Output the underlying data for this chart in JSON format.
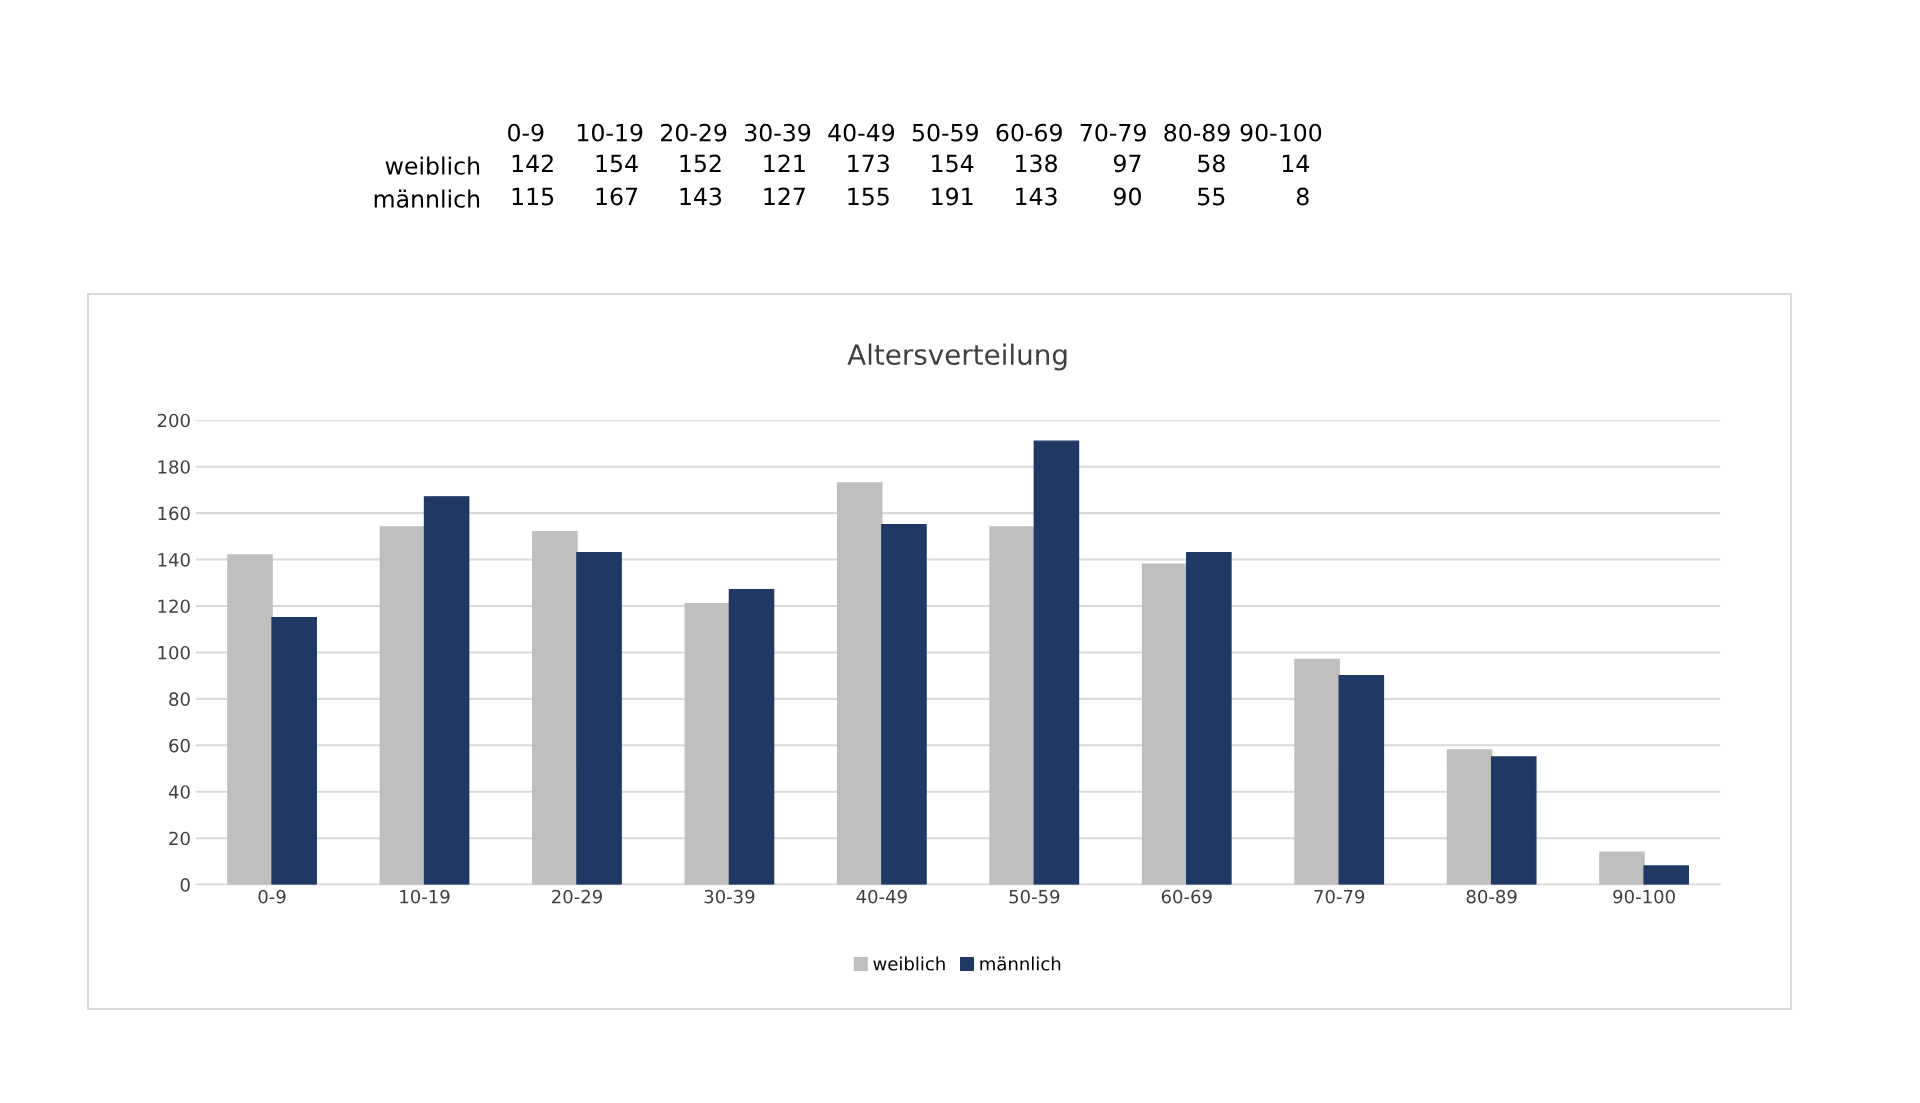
{
  "chart_data": [
    {
      "type": "heatmap",
      "categories": [
        "0-9",
        "10-19",
        "20-29",
        "30-39",
        "40-49",
        "50-59",
        "60-69",
        "70-79",
        "80-89",
        "90-100"
      ],
      "y_categories": [
        "weiblich",
        "männlich"
      ],
      "cells": [
        [
          142,
          154,
          152,
          121,
          173,
          154,
          138,
          97,
          58,
          14
        ],
        [
          115,
          167,
          143,
          127,
          155,
          191,
          143,
          90,
          55,
          8
        ]
      ],
      "data_labels": true
    },
    {
      "type": "bar",
      "title": "Altersverteilung",
      "categories": [
        "0-9",
        "10-19",
        "20-29",
        "30-39",
        "40-49",
        "50-59",
        "60-69",
        "70-79",
        "80-89",
        "90-100"
      ],
      "series": [
        {
          "name": "weiblich",
          "color": "#bfbfbf",
          "values": [
            142,
            154,
            152,
            121,
            173,
            154,
            138,
            97,
            58,
            14
          ]
        },
        {
          "name": "männlich",
          "color": "#203864",
          "values": [
            115,
            167,
            143,
            127,
            155,
            191,
            143,
            90,
            55,
            8
          ]
        }
      ],
      "ylim": [
        0,
        200
      ],
      "yticks": [
        0,
        20,
        40,
        60,
        80,
        100,
        120,
        140,
        160,
        180,
        200
      ],
      "grid": "y",
      "legend": "bottom"
    }
  ]
}
